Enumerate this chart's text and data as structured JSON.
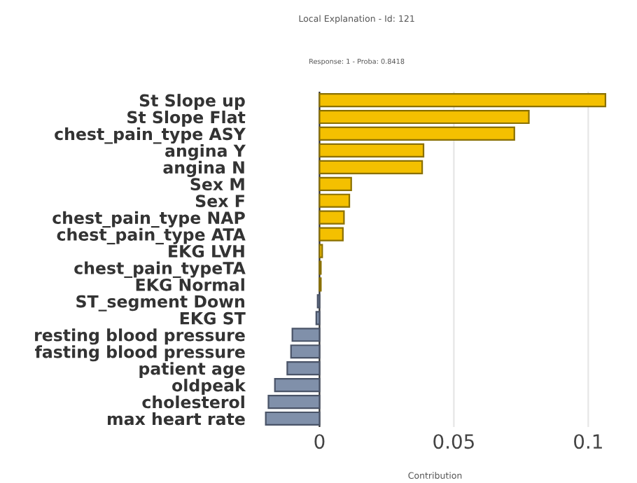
{
  "chart_data": {
    "type": "bar",
    "orientation": "horizontal",
    "title": "Local Explanation - Id: 121",
    "subtitle": "Response: 1 - Proba: 0.8418",
    "xlabel": "Contribution",
    "categories": [
      "St Slope up",
      "St Slope Flat",
      "chest_pain_type ASY",
      "angina Y",
      "angina N",
      "Sex M",
      "Sex F",
      "chest_pain_type NAP",
      "chest_pain_type ATA",
      "EKG LVH",
      "chest_pain_typeTA",
      "EKG Normal",
      "ST_segment Down",
      "EKG ST",
      "resting blood pressure",
      "fasting blood pressure",
      "patient age",
      "oldpeak",
      "cholesterol",
      "max heart rate"
    ],
    "values": [
      0.1064,
      0.0779,
      0.0725,
      0.0387,
      0.0382,
      0.0118,
      0.0111,
      0.0091,
      0.0087,
      0.001,
      0.0005,
      0.0005,
      -0.0007,
      -0.0012,
      -0.0101,
      -0.0106,
      -0.012,
      -0.0166,
      -0.019,
      -0.02
    ],
    "colors": [
      "#f4c000",
      "#f4c000",
      "#f4c000",
      "#f4c000",
      "#f4c000",
      "#f4c000",
      "#f4c000",
      "#f4c000",
      "#f4c000",
      "#f4c000",
      "#f4c000",
      "#f4c000",
      "#8090aa",
      "#8090aa",
      "#8090aa",
      "#8090aa",
      "#8090aa",
      "#8090aa",
      "#8090aa",
      "#8090aa"
    ],
    "xlim": [
      -0.021,
      0.107
    ],
    "xticks": [
      0,
      0.05,
      0.1
    ],
    "grid": "x"
  }
}
